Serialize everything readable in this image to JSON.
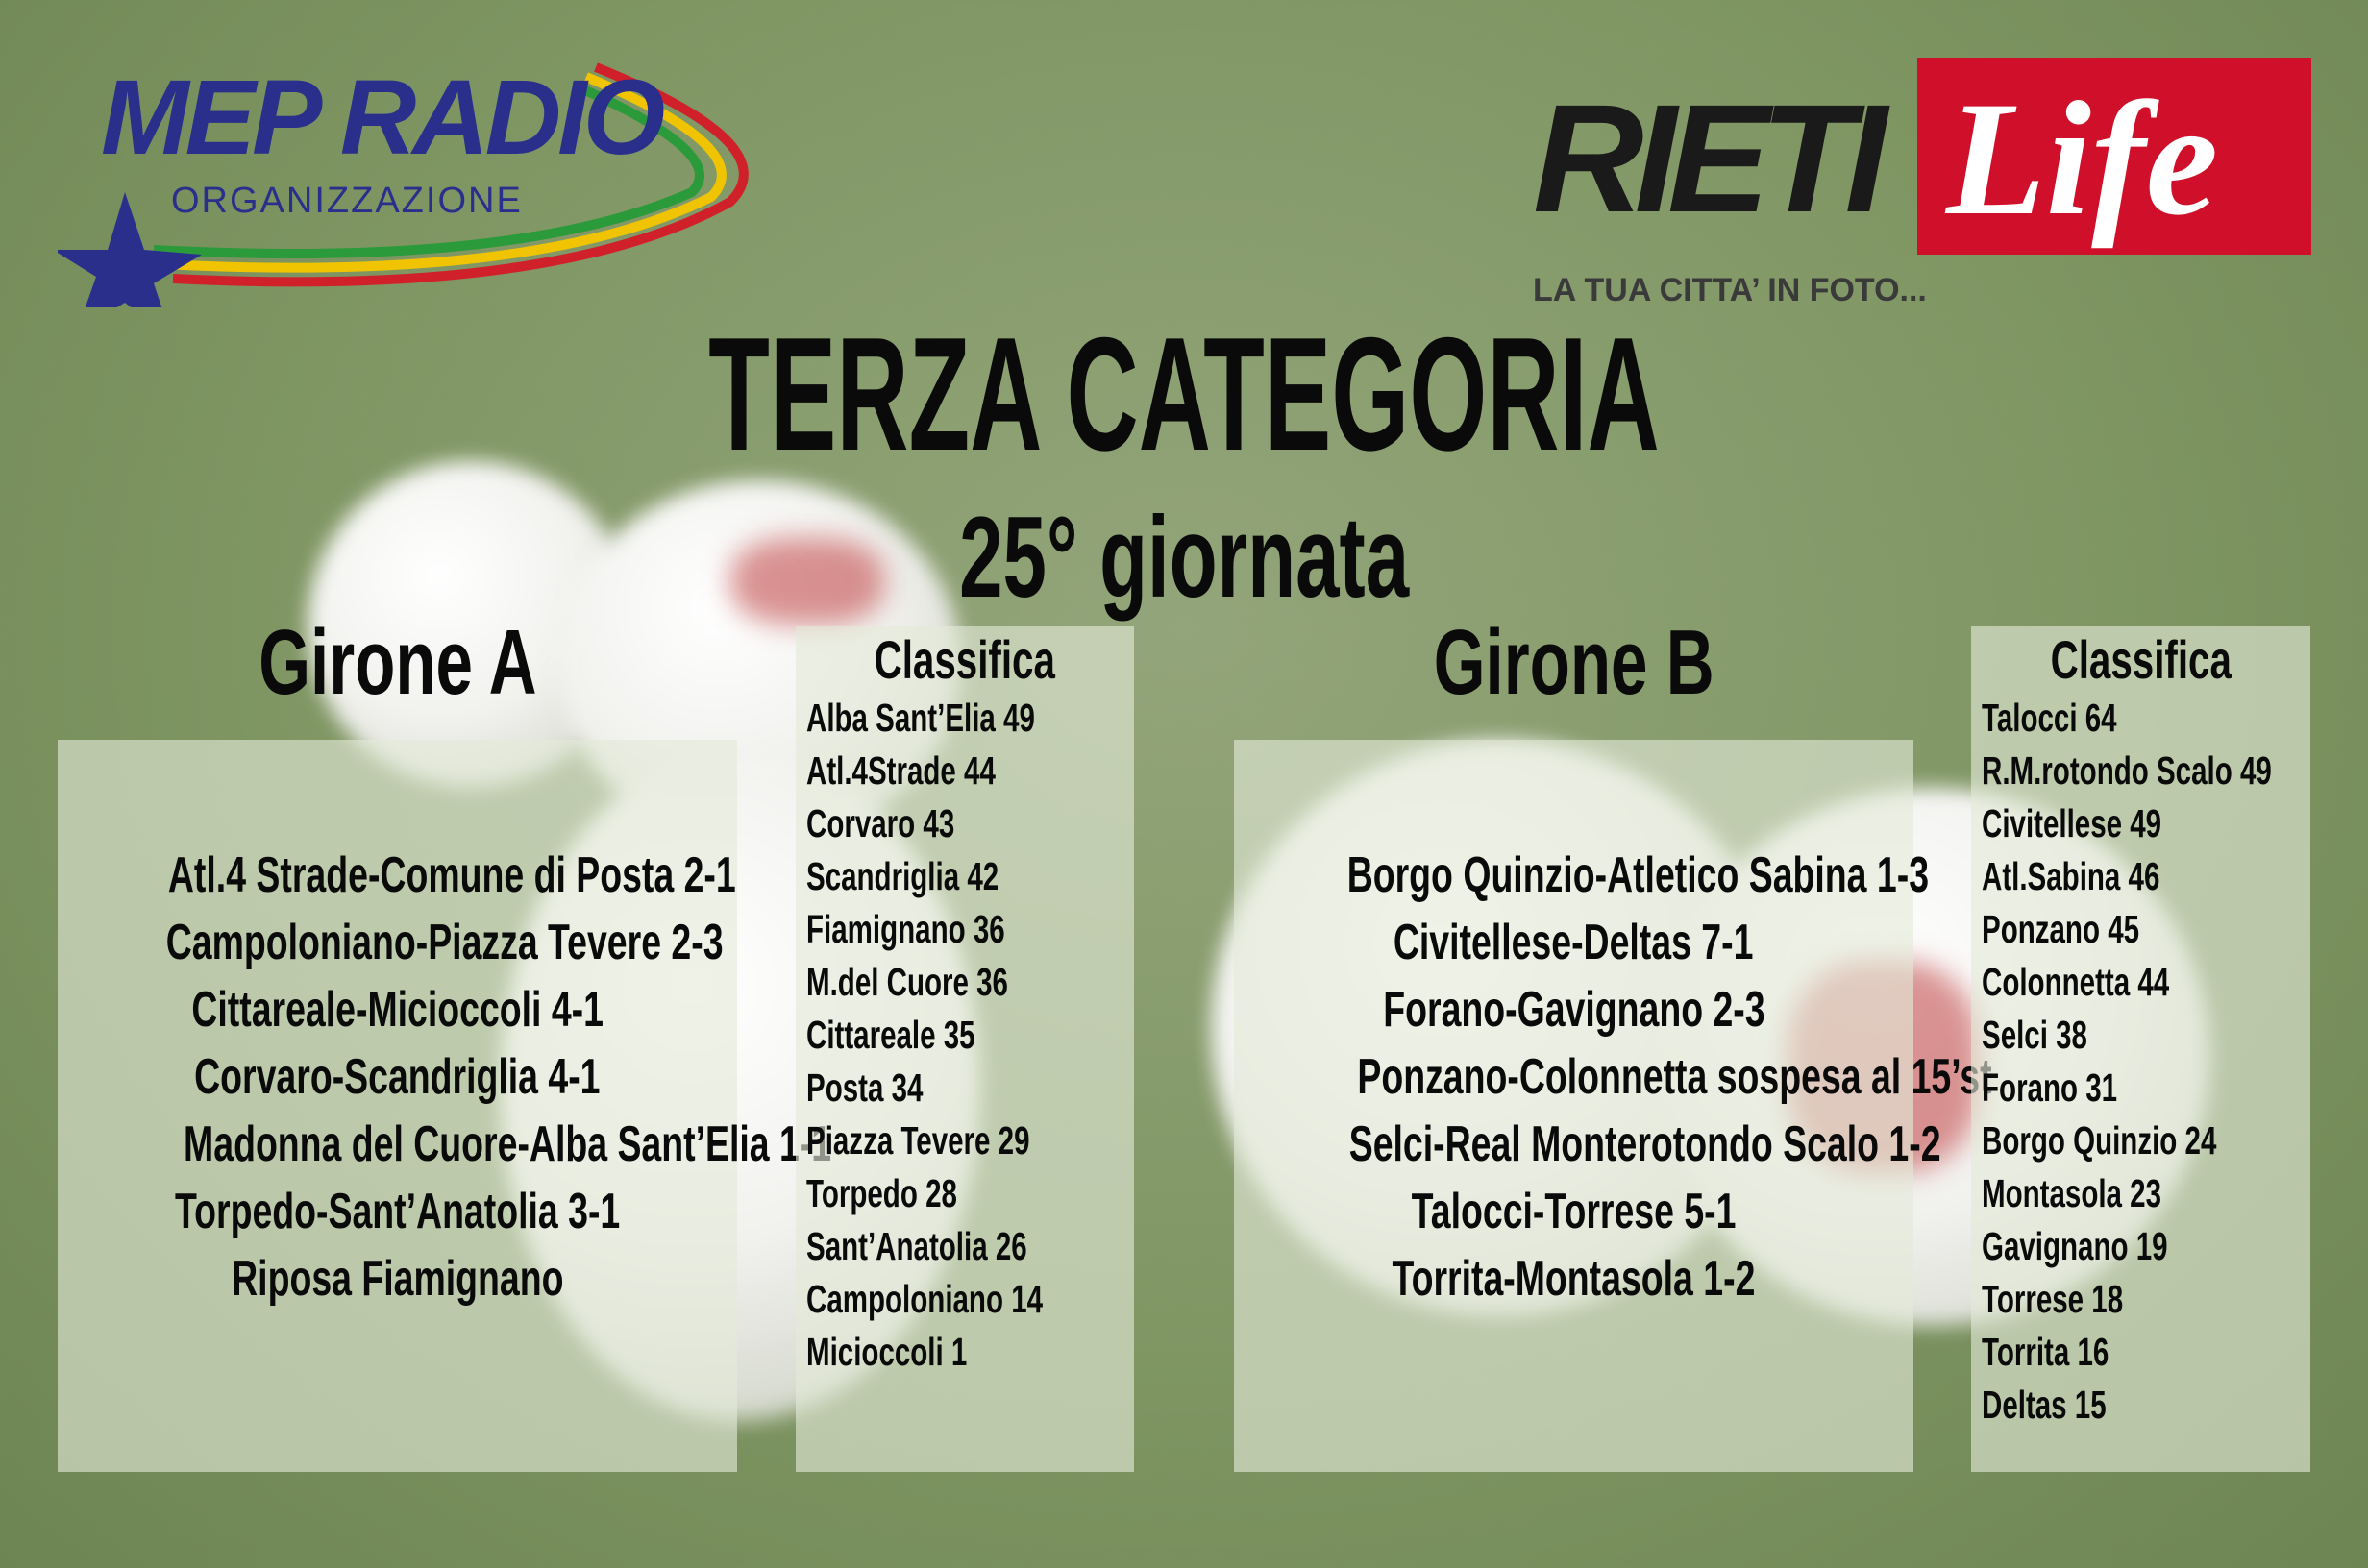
{
  "logos": {
    "left": "MEP RADIO",
    "left_sub": "ORGANIZZAZIONE",
    "right_a": "RIETI",
    "right_b": "Life",
    "right_tagline": "LA TUA CITTA’ IN FOTO..."
  },
  "title": "TERZA CATEGORIA",
  "subtitle": "25° giornata",
  "girone_a": {
    "heading": "Girone A",
    "matches": [
      "Atl.4 Strade-Comune di Posta 2-1",
      "Campoloniano-Piazza Tevere 2-3",
      "Cittareale-Micioccoli 4-1",
      "Corvaro-Scandriglia 4-1",
      "Madonna del Cuore-Alba Sant’Elia 1-1",
      "Torpedo-Sant’Anatolia 3-1",
      "Riposa Fiamignano"
    ],
    "classifica_title": "Classifica",
    "classifica": [
      "Alba Sant’Elia 49",
      "Atl.4Strade 44",
      "Corvaro 43",
      "Scandriglia 42",
      "Fiamignano 36",
      "M.del Cuore 36",
      "Cittareale 35",
      "Posta 34",
      "Piazza Tevere 29",
      "Torpedo 28",
      "Sant’Anatolia 26",
      "Campoloniano 14",
      "Micioccoli 1"
    ]
  },
  "girone_b": {
    "heading": "Girone B",
    "matches": [
      "Borgo Quinzio-Atletico Sabina 1-3",
      "Civitellese-Deltas 7-1",
      "Forano-Gavignano 2-3",
      "Ponzano-Colonnetta sospesa al 15’st",
      "Selci-Real Monterotondo Scalo 1-2",
      "Talocci-Torrese 5-1",
      "Torrita-Montasola 1-2"
    ],
    "classifica_title": "Classifica",
    "classifica": [
      "Talocci 64",
      "R.M.rotondo Scalo 49",
      "Civitellese 49",
      "Atl.Sabina 46",
      "Ponzano 45",
      "Colonnetta 44",
      "Selci 38",
      "Forano 31",
      "Borgo Quinzio 24",
      "Montasola 23",
      "Gavignano 19",
      "Torrese 18",
      "Torrita 16",
      "Deltas 15"
    ]
  },
  "colors": {
    "brand_blue": "#2b2f8c",
    "rieti_red": "#d0102a"
  }
}
